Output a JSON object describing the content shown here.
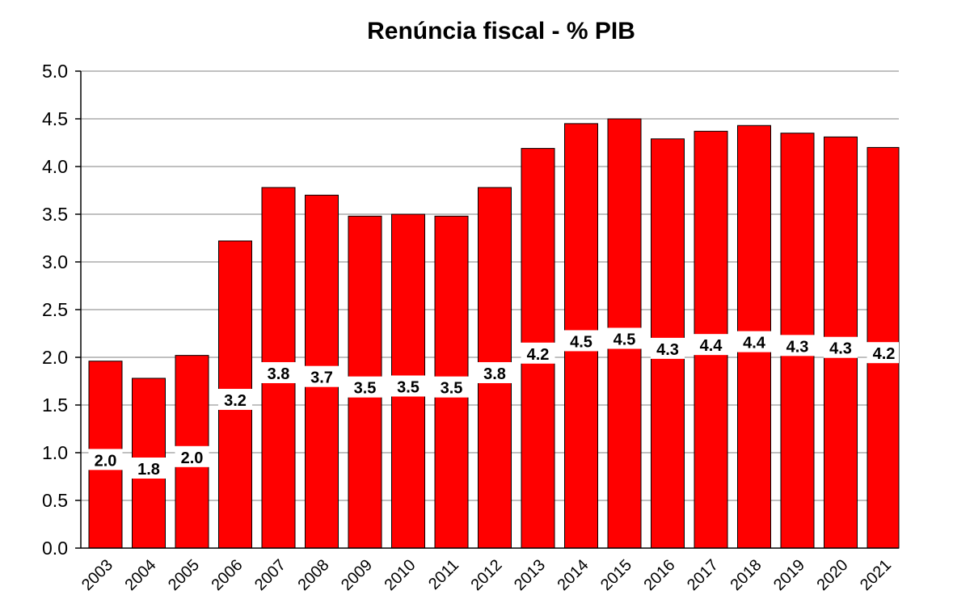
{
  "chart_data": {
    "type": "bar",
    "title": "Renúncia fiscal - % PIB",
    "xlabel": "",
    "ylabel": "",
    "categories": [
      "2003",
      "2004",
      "2005",
      "2006",
      "2007",
      "2008",
      "2009",
      "2010",
      "2011",
      "2012",
      "2013",
      "2014",
      "2015",
      "2016",
      "2017",
      "2018",
      "2019",
      "2020",
      "2021"
    ],
    "values": [
      1.96,
      1.78,
      2.02,
      3.22,
      3.78,
      3.7,
      3.48,
      3.5,
      3.48,
      3.78,
      4.19,
      4.45,
      4.5,
      4.29,
      4.37,
      4.43,
      4.35,
      4.31,
      4.2
    ],
    "data_labels": [
      "2.0",
      "1.8",
      "2.0",
      "3.2",
      "3.8",
      "3.7",
      "3.5",
      "3.5",
      "3.5",
      "3.8",
      "4.2",
      "4.5",
      "4.5",
      "4.3",
      "4.4",
      "4.4",
      "4.3",
      "4.3",
      "4.2"
    ],
    "ylim": [
      0,
      5
    ],
    "yticks": [
      "0.0",
      "0.5",
      "1.0",
      "1.5",
      "2.0",
      "2.5",
      "3.0",
      "3.5",
      "4.0",
      "4.5",
      "5.0"
    ],
    "ytick_values": [
      0,
      0.5,
      1,
      1.5,
      2,
      2.5,
      3,
      3.5,
      4,
      4.5,
      5
    ],
    "grid": true,
    "legend": "none",
    "bar_color": "#ff0000",
    "label_box_color": "#ffffff"
  }
}
